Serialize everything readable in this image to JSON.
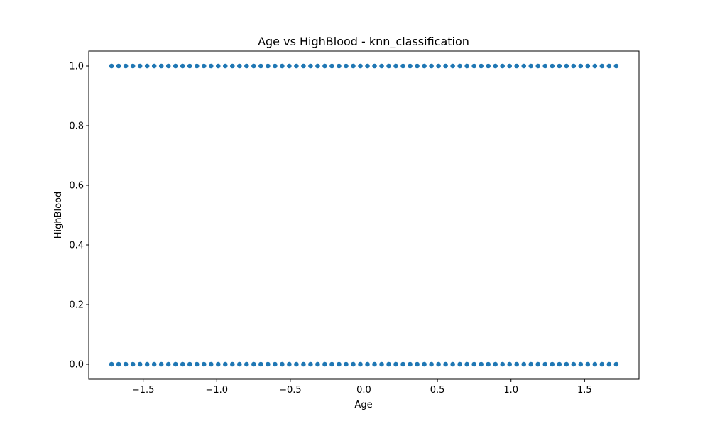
{
  "chart_data": {
    "type": "scatter",
    "title": "Age vs HighBlood - knn_classification",
    "xlabel": "Age",
    "ylabel": "HighBlood",
    "xlim": [
      -1.87,
      1.87
    ],
    "ylim": [
      -0.05,
      1.05
    ],
    "xticks": [
      -1.5,
      -1.0,
      -0.5,
      0.0,
      0.5,
      1.0,
      1.5
    ],
    "xtick_labels": [
      "−1.5",
      "−1.0",
      "−0.5",
      "0.0",
      "0.5",
      "1.0",
      "1.5"
    ],
    "yticks": [
      0.0,
      0.2,
      0.4,
      0.6,
      0.8,
      1.0
    ],
    "ytick_labels": [
      "0.0",
      "0.2",
      "0.4",
      "0.6",
      "0.8",
      "1.0"
    ],
    "grid": false,
    "marker_color": "#1f77b4",
    "series": [
      {
        "x_start": -1.715,
        "x_end": 1.715,
        "point_count": 72,
        "y_values": [
          0,
          1
        ]
      }
    ]
  }
}
